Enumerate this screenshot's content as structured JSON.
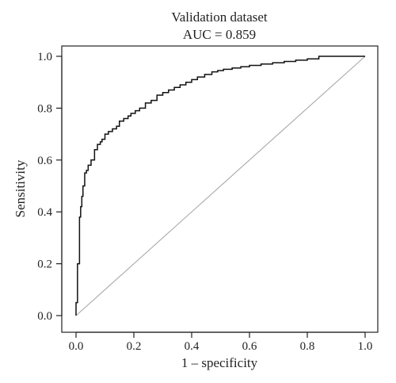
{
  "chart_data": {
    "type": "line",
    "title": "Validation dataset",
    "subtitle": "AUC = 0.859",
    "xlabel": "1 – specificity",
    "ylabel": "Sensitivity",
    "xlim": [
      0,
      1
    ],
    "ylim": [
      0,
      1
    ],
    "x_ticks": [
      "0.0",
      "0.2",
      "0.4",
      "0.6",
      "0.8",
      "1.0"
    ],
    "y_ticks": [
      "0.0",
      "0.2",
      "0.4",
      "0.6",
      "0.8",
      "1.0"
    ],
    "grid": false,
    "legend": "none",
    "colors": {
      "roc": "#111111",
      "reference": "#a8a8a8",
      "frame": "#222222"
    },
    "series": [
      {
        "role": "roc",
        "x": [
          0.0,
          0.0,
          0.005,
          0.005,
          0.012,
          0.012,
          0.016,
          0.016,
          0.02,
          0.02,
          0.024,
          0.024,
          0.03,
          0.03,
          0.036,
          0.036,
          0.042,
          0.042,
          0.052,
          0.052,
          0.064,
          0.064,
          0.074,
          0.074,
          0.084,
          0.084,
          0.09,
          0.09,
          0.1,
          0.1,
          0.112,
          0.112,
          0.126,
          0.126,
          0.14,
          0.14,
          0.15,
          0.15,
          0.165,
          0.165,
          0.18,
          0.18,
          0.19,
          0.19,
          0.205,
          0.205,
          0.22,
          0.22,
          0.24,
          0.24,
          0.26,
          0.26,
          0.28,
          0.28,
          0.3,
          0.3,
          0.32,
          0.32,
          0.34,
          0.34,
          0.36,
          0.36,
          0.38,
          0.38,
          0.4,
          0.4,
          0.42,
          0.42,
          0.445,
          0.445,
          0.47,
          0.47,
          0.49,
          0.49,
          0.51,
          0.51,
          0.54,
          0.54,
          0.57,
          0.57,
          0.6,
          0.6,
          0.64,
          0.64,
          0.68,
          0.68,
          0.72,
          0.72,
          0.76,
          0.76,
          0.8,
          0.8,
          0.84,
          0.84,
          0.9,
          0.9,
          1.0
        ],
        "y": [
          0.0,
          0.05,
          0.05,
          0.2,
          0.2,
          0.38,
          0.38,
          0.42,
          0.42,
          0.46,
          0.46,
          0.5,
          0.5,
          0.55,
          0.55,
          0.56,
          0.56,
          0.58,
          0.58,
          0.6,
          0.6,
          0.64,
          0.64,
          0.66,
          0.66,
          0.67,
          0.67,
          0.68,
          0.68,
          0.7,
          0.7,
          0.71,
          0.71,
          0.72,
          0.72,
          0.73,
          0.73,
          0.75,
          0.75,
          0.76,
          0.76,
          0.77,
          0.77,
          0.78,
          0.78,
          0.79,
          0.79,
          0.8,
          0.8,
          0.82,
          0.82,
          0.83,
          0.83,
          0.85,
          0.85,
          0.86,
          0.86,
          0.87,
          0.87,
          0.88,
          0.88,
          0.89,
          0.89,
          0.9,
          0.9,
          0.91,
          0.91,
          0.92,
          0.92,
          0.93,
          0.93,
          0.94,
          0.94,
          0.945,
          0.945,
          0.95,
          0.95,
          0.955,
          0.955,
          0.96,
          0.96,
          0.965,
          0.965,
          0.97,
          0.97,
          0.975,
          0.975,
          0.98,
          0.98,
          0.985,
          0.985,
          0.99,
          0.99,
          1.0,
          1.0,
          1.0,
          1.0
        ]
      },
      {
        "role": "reference",
        "x": [
          0,
          1
        ],
        "y": [
          0,
          1
        ]
      }
    ]
  }
}
